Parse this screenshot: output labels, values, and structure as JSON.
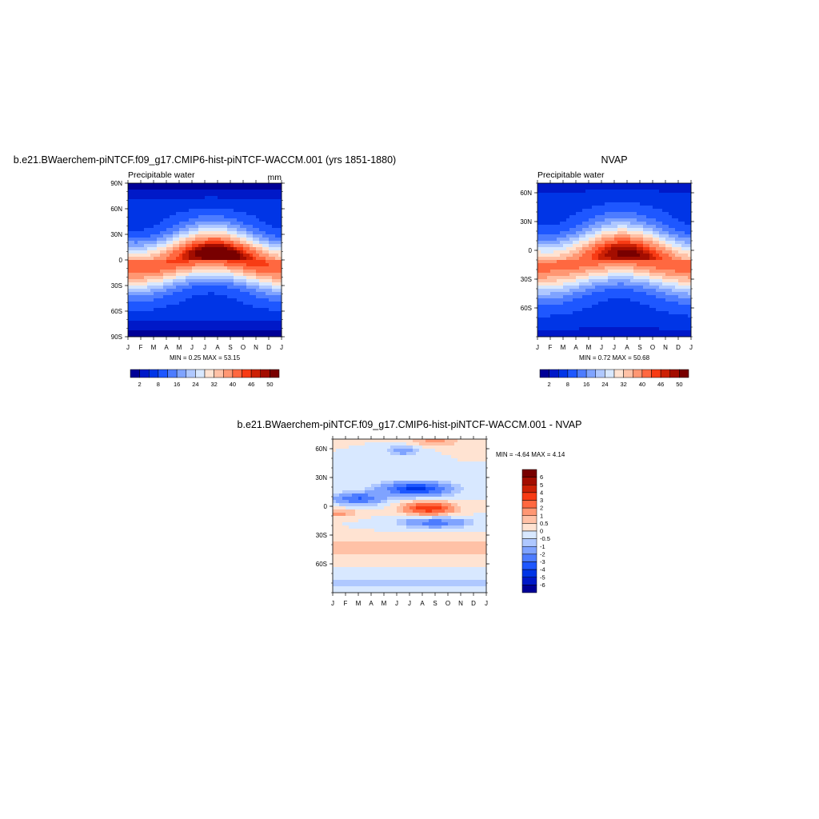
{
  "colors": {
    "diverging": [
      "#000096",
      "#0019c8",
      "#0035e6",
      "#1e57ff",
      "#4d7cff",
      "#7fa3ff",
      "#afc8ff",
      "#d8e8ff",
      "#ffe3d2",
      "#ffc1a6",
      "#ff9773",
      "#ff6840",
      "#f73b14",
      "#cc2105",
      "#a30d00",
      "#780000"
    ]
  },
  "chart_data": [
    {
      "id": "model",
      "type": "heatmap",
      "title": "b.e21.BWaerchem-piNTCF.f09_g17.CMIP6-hist-piNTCF-WACCM.001 (yrs 1851-1880)",
      "subtitle_left": "Precipitable water",
      "subtitle_right": "mm",
      "stats": "MIN =   0.25 MAX =  53.15",
      "x": [
        "J",
        "F",
        "M",
        "A",
        "M",
        "J",
        "J",
        "A",
        "S",
        "O",
        "N",
        "D",
        "J"
      ],
      "yticks": [
        "90N",
        "60N",
        "30N",
        "0",
        "30S",
        "60S",
        "90S"
      ],
      "ylim": [
        -90,
        90
      ],
      "colorbar_labels": [
        "2",
        "8",
        "16",
        "24",
        "32",
        "40",
        "46",
        "50"
      ],
      "levels": [
        2,
        4,
        8,
        12,
        16,
        20,
        24,
        28,
        32,
        36,
        40,
        44,
        46,
        48,
        50
      ],
      "peak": 53.15,
      "itcz_amp": 8,
      "min_val": 0.25
    },
    {
      "id": "obs",
      "type": "heatmap",
      "title": "NVAP",
      "subtitle_left": "Precipitable water",
      "subtitle_right": "",
      "stats": "MIN =   0.72 MAX =  50.68",
      "x": [
        "J",
        "F",
        "M",
        "A",
        "M",
        "J",
        "J",
        "A",
        "S",
        "O",
        "N",
        "D",
        "J"
      ],
      "yticks": [
        "60N",
        "30N",
        "0",
        "30S",
        "60S"
      ],
      "ylim": [
        -80,
        80
      ],
      "colorbar_labels": [
        "2",
        "8",
        "16",
        "24",
        "32",
        "40",
        "46",
        "50"
      ],
      "levels": [
        2,
        4,
        8,
        12,
        16,
        20,
        24,
        28,
        32,
        36,
        40,
        44,
        46,
        48,
        50
      ],
      "peak": 50.68,
      "itcz_amp": 7,
      "min_val": 0.72
    },
    {
      "id": "diff",
      "type": "heatmap",
      "title": "b.e21.BWaerchem-piNTCF.f09_g17.CMIP6-hist-piNTCF-WACCM.001 - NVAP",
      "subtitle_left": "",
      "subtitle_right": "",
      "stats": "MIN =  -4.64 MAX =   4.14",
      "x": [
        "J",
        "F",
        "M",
        "A",
        "M",
        "J",
        "J",
        "A",
        "S",
        "O",
        "N",
        "D",
        "J"
      ],
      "yticks": [
        "60N",
        "30N",
        "0",
        "30S",
        "60S"
      ],
      "ylim": [
        -80,
        80
      ],
      "colorbar_labels": [
        "6",
        "5",
        "4",
        "3",
        "2",
        "1",
        "0.5",
        "0",
        "-0.5",
        "-1",
        "-2",
        "-3",
        "-4",
        "-5",
        "-6"
      ],
      "levels": [
        -6,
        -5,
        -4,
        -3,
        -2,
        -1,
        -0.5,
        0,
        0.5,
        1,
        2,
        3,
        4,
        5,
        6
      ]
    }
  ]
}
